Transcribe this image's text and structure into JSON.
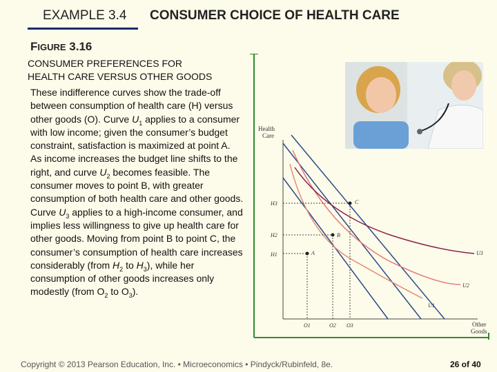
{
  "header": {
    "example": "EXAMPLE 3.4",
    "title": "CONSUMER CHOICE OF HEALTH CARE"
  },
  "figure": {
    "label_first": "F",
    "label_rest": "IGURE",
    "label_number": " 3.16",
    "title_line1": "CONSUMER PREFERENCES FOR",
    "title_line2": "HEALTH CARE VERSUS OTHER GOODS"
  },
  "caption": {
    "p1_a": "These indifference curves show the trade-off between consumption of health care (H) versus other goods (O). Curve ",
    "p1_U": "U",
    "p1_sub": "1",
    "p1_b": " applies to a consumer with low income; given the consumer’s budget constraint, satisfaction is maximized at point A.",
    "p2_a": "As income increases the budget line shifts to the right, and curve ",
    "p2_U": "U",
    "p2_sub": "2",
    "p2_b": " becomes feasible. The consumer moves to point B, with greater consumption of both health care and other goods.",
    "p3_a": "Curve ",
    "p3_U": "U",
    "p3_sub": "3",
    "p3_b": " applies to a high-income consumer, and implies less willingness to give up health care for other goods. Moving from point B to point C, the consumer’s consumption of health care increases considerably (from ",
    "p3_H2": "H",
    "p3_H2sub": "2",
    "p3_mid": " to ",
    "p3_H3": "H",
    "p3_H3sub": "3",
    "p3_c": "), while her consumption of other goods increases only modestly (from ",
    "p3_O2": "O",
    "p3_O2sub": "2",
    "p3_d": " to ",
    "p3_O3": "O",
    "p3_O3sub": "3",
    "p3_e": ")."
  },
  "graph": {
    "y_axis_label_line1": "Health",
    "y_axis_label_line2": "Care",
    "x_axis_label_line1": "Other",
    "x_axis_label_line2": "Goods",
    "y_ticks": [
      "H3",
      "H2",
      "H1"
    ],
    "x_ticks": [
      "O1",
      "O2",
      "O3"
    ],
    "points": [
      "A",
      "B",
      "C"
    ],
    "curves": [
      "U3",
      "U2",
      "U1"
    ],
    "colors": {
      "axis": "#2e8b2e",
      "budget": "#2a4a8a",
      "u1": "#e48b7a",
      "u2": "#e4787a",
      "u3": "#8a1f4a"
    }
  },
  "footer": {
    "copyright": "Copyright © 2013 Pearson Education, Inc. • Microeconomics • Pindyck/Rubinfeld, 8e.",
    "page": "26 of 40"
  }
}
